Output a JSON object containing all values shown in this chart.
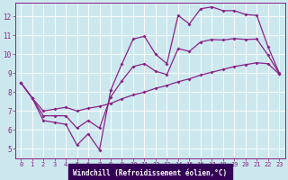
{
  "xlabel": "Windchill (Refroidissement éolien,°C)",
  "background_color": "#cce8ee",
  "grid_color": "#aad4dd",
  "line_color": "#882288",
  "axis_bg": "#330055",
  "xlim": [
    -0.5,
    23.5
  ],
  "ylim": [
    4.5,
    12.7
  ],
  "xticks": [
    0,
    1,
    2,
    3,
    4,
    5,
    6,
    7,
    8,
    9,
    10,
    11,
    12,
    13,
    14,
    15,
    16,
    17,
    18,
    19,
    20,
    21,
    22,
    23
  ],
  "yticks": [
    5,
    6,
    7,
    8,
    9,
    10,
    11,
    12
  ],
  "line1_x": [
    0,
    1,
    2,
    3,
    4,
    5,
    6,
    7,
    8,
    9,
    10,
    11,
    12,
    13,
    14,
    15,
    16,
    17,
    18,
    19,
    20,
    21,
    22,
    23
  ],
  "line1_y": [
    8.5,
    7.7,
    6.5,
    6.4,
    6.3,
    5.2,
    5.8,
    4.95,
    8.1,
    9.5,
    10.8,
    10.95,
    10.0,
    9.5,
    12.05,
    11.6,
    12.4,
    12.5,
    12.3,
    12.3,
    12.1,
    12.05,
    10.4,
    9.0
  ],
  "line2_x": [
    0,
    1,
    2,
    3,
    4,
    5,
    6,
    7,
    8,
    9,
    10,
    11,
    12,
    13,
    14,
    15,
    16,
    17,
    18,
    19,
    20,
    21,
    22,
    23
  ],
  "line2_y": [
    8.5,
    7.7,
    7.0,
    7.1,
    7.2,
    7.0,
    7.15,
    7.25,
    7.4,
    7.65,
    7.85,
    8.0,
    8.2,
    8.35,
    8.55,
    8.7,
    8.9,
    9.05,
    9.2,
    9.35,
    9.45,
    9.55,
    9.5,
    8.95
  ],
  "line3_x": [
    0,
    1,
    2,
    3,
    4,
    5,
    6,
    7,
    8,
    9,
    10,
    11,
    12,
    13,
    14,
    15,
    16,
    17,
    18,
    19,
    20,
    21,
    22,
    23
  ],
  "line3_y": [
    8.5,
    7.7,
    6.75,
    6.75,
    6.75,
    6.1,
    6.5,
    6.1,
    7.75,
    8.6,
    9.35,
    9.5,
    9.1,
    8.93,
    10.3,
    10.15,
    10.65,
    10.78,
    10.75,
    10.83,
    10.78,
    10.8,
    9.95,
    8.98
  ]
}
